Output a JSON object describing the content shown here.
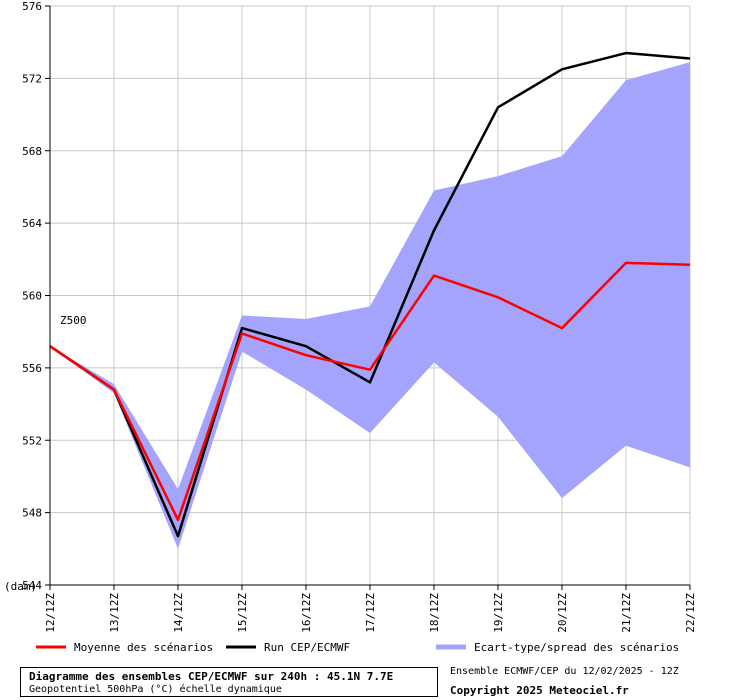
{
  "chart_data": {
    "type": "line",
    "x": [
      "12/12Z",
      "13/12Z",
      "14/12Z",
      "15/12Z",
      "16/12Z",
      "17/12Z",
      "18/12Z",
      "19/12Z",
      "20/12Z",
      "21/12Z",
      "22/12Z"
    ],
    "ylim": [
      544,
      576
    ],
    "yticks": [
      544,
      548,
      552,
      556,
      560,
      564,
      568,
      572,
      576
    ],
    "ylabel": "(dam)",
    "annotation": "Z500",
    "grid": true,
    "series": [
      {
        "name": "Moyenne des scénarios",
        "color": "#ff0000",
        "values": [
          557.2,
          554.8,
          547.6,
          557.9,
          556.7,
          555.9,
          561.1,
          559.9,
          558.2,
          561.8,
          561.7
        ]
      },
      {
        "name": "Run CEP/ECMWF",
        "color": "#000000",
        "values": [
          557.2,
          554.8,
          546.7,
          558.2,
          557.2,
          555.2,
          563.6,
          570.4,
          572.5,
          573.4,
          573.1
        ]
      }
    ],
    "spread": {
      "name": "Ecart-type/spread des scénarios",
      "color": "#a4a4fc",
      "upper": [
        557.2,
        555.1,
        549.3,
        558.9,
        558.7,
        559.4,
        565.8,
        566.6,
        567.7,
        571.9,
        572.9
      ],
      "lower": [
        557.2,
        554.6,
        546.0,
        556.9,
        554.8,
        552.4,
        556.3,
        553.3,
        548.8,
        551.7,
        550.5
      ]
    }
  },
  "footer": {
    "title": "Diagramme des ensembles CEP/ECMWF sur 240h : 45.1N 7.7E",
    "subtitle": "Geopotentiel 500hPa (°C) échelle dynamique",
    "run_info": "Ensemble ECMWF/CEP du 12/02/2025 - 12Z",
    "copyright": "Copyright 2025 Meteociel.fr"
  }
}
